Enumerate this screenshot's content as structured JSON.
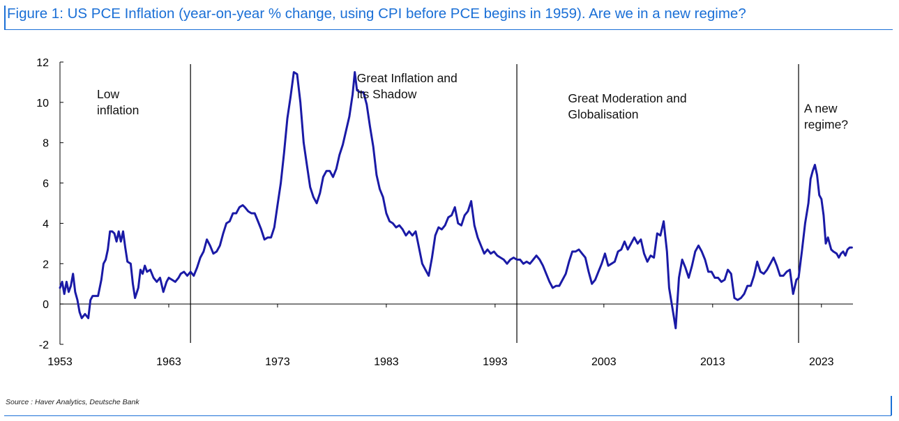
{
  "title": "Figure 1: US PCE Inflation (year-on-year % change, using CPI before PCE begins in 1959). Are we in a new regime?",
  "source": "Source : Haver Analytics, Deutsche Bank",
  "colors": {
    "accent": "#1a6fd6",
    "series": "#1a1aa6",
    "axis": "#000000"
  },
  "chart_data": {
    "type": "line",
    "title": "Figure 1: US PCE Inflation (year-on-year % change, using CPI before PCE begins in 1959). Are we in a new regime?",
    "xlabel": "",
    "ylabel": "",
    "xlim": [
      1953,
      2025.9
    ],
    "ylim": [
      -2,
      12
    ],
    "x_ticks": [
      1953,
      1963,
      1973,
      1983,
      1993,
      2003,
      2013,
      2023
    ],
    "x_tick_labels": [
      "1953",
      "1963",
      "1973",
      "1983",
      "1993",
      "2003",
      "2013",
      "2023"
    ],
    "y_ticks": [
      -2,
      0,
      2,
      4,
      6,
      8,
      10,
      12
    ],
    "y_tick_labels": [
      "-2",
      "0",
      "2",
      "4",
      "6",
      "8",
      "10",
      "12"
    ],
    "grid": false,
    "legend": "none",
    "regime_dividers": [
      1965,
      1995,
      2020.9
    ],
    "annotations": [
      {
        "lines": [
          "Low",
          "inflation"
        ],
        "x": 1956.4,
        "y": 10.2
      },
      {
        "lines": [
          "Great Inflation and",
          "its Shadow"
        ],
        "x": 1980.3,
        "y": 11.0
      },
      {
        "lines": [
          "Great Moderation and",
          "Globalisation"
        ],
        "x": 1999.7,
        "y": 10.0
      },
      {
        "lines": [
          "A new",
          "regime?"
        ],
        "x": 2021.4,
        "y": 9.5
      }
    ],
    "series": [
      {
        "points": [
          [
            1953.0,
            0.8
          ],
          [
            1953.2,
            1.1
          ],
          [
            1953.4,
            0.5
          ],
          [
            1953.6,
            1.1
          ],
          [
            1953.8,
            0.6
          ],
          [
            1954.0,
            0.9
          ],
          [
            1954.2,
            1.5
          ],
          [
            1954.4,
            0.6
          ],
          [
            1954.6,
            0.2
          ],
          [
            1954.8,
            -0.4
          ],
          [
            1955.0,
            -0.7
          ],
          [
            1955.3,
            -0.5
          ],
          [
            1955.6,
            -0.7
          ],
          [
            1955.8,
            0.2
          ],
          [
            1956.0,
            0.4
          ],
          [
            1956.5,
            0.4
          ],
          [
            1956.8,
            1.2
          ],
          [
            1957.0,
            2.0
          ],
          [
            1957.2,
            2.2
          ],
          [
            1957.4,
            2.7
          ],
          [
            1957.6,
            3.6
          ],
          [
            1957.8,
            3.6
          ],
          [
            1958.0,
            3.5
          ],
          [
            1958.2,
            3.1
          ],
          [
            1958.4,
            3.6
          ],
          [
            1958.6,
            3.1
          ],
          [
            1958.8,
            3.6
          ],
          [
            1959.0,
            2.8
          ],
          [
            1959.2,
            2.1
          ],
          [
            1959.5,
            2.0
          ],
          [
            1959.7,
            1.0
          ],
          [
            1959.9,
            0.3
          ],
          [
            1960.2,
            0.8
          ],
          [
            1960.4,
            1.7
          ],
          [
            1960.6,
            1.5
          ],
          [
            1960.8,
            1.9
          ],
          [
            1961.0,
            1.6
          ],
          [
            1961.3,
            1.7
          ],
          [
            1961.6,
            1.3
          ],
          [
            1961.9,
            1.1
          ],
          [
            1962.2,
            1.3
          ],
          [
            1962.5,
            0.6
          ],
          [
            1962.8,
            1.1
          ],
          [
            1963.0,
            1.3
          ],
          [
            1963.3,
            1.2
          ],
          [
            1963.6,
            1.1
          ],
          [
            1963.9,
            1.3
          ],
          [
            1964.1,
            1.5
          ],
          [
            1964.4,
            1.6
          ],
          [
            1964.7,
            1.4
          ],
          [
            1965.0,
            1.6
          ],
          [
            1965.3,
            1.4
          ],
          [
            1965.6,
            1.8
          ],
          [
            1965.9,
            2.3
          ],
          [
            1966.2,
            2.6
          ],
          [
            1966.5,
            3.2
          ],
          [
            1966.8,
            2.9
          ],
          [
            1967.1,
            2.5
          ],
          [
            1967.4,
            2.6
          ],
          [
            1967.7,
            2.9
          ],
          [
            1968.0,
            3.5
          ],
          [
            1968.3,
            4.0
          ],
          [
            1968.6,
            4.1
          ],
          [
            1968.9,
            4.5
          ],
          [
            1969.2,
            4.5
          ],
          [
            1969.5,
            4.8
          ],
          [
            1969.8,
            4.9
          ],
          [
            1970.0,
            4.8
          ],
          [
            1970.3,
            4.6
          ],
          [
            1970.6,
            4.5
          ],
          [
            1970.9,
            4.5
          ],
          [
            1971.2,
            4.1
          ],
          [
            1971.5,
            3.7
          ],
          [
            1971.8,
            3.2
          ],
          [
            1972.1,
            3.3
          ],
          [
            1972.4,
            3.3
          ],
          [
            1972.7,
            3.8
          ],
          [
            1973.0,
            4.9
          ],
          [
            1973.3,
            6.0
          ],
          [
            1973.6,
            7.5
          ],
          [
            1973.9,
            9.2
          ],
          [
            1974.2,
            10.3
          ],
          [
            1974.5,
            11.5
          ],
          [
            1974.8,
            11.4
          ],
          [
            1975.1,
            10.0
          ],
          [
            1975.4,
            8.0
          ],
          [
            1975.7,
            6.9
          ],
          [
            1976.0,
            5.8
          ],
          [
            1976.3,
            5.3
          ],
          [
            1976.6,
            5.0
          ],
          [
            1976.9,
            5.5
          ],
          [
            1977.2,
            6.3
          ],
          [
            1977.5,
            6.6
          ],
          [
            1977.8,
            6.6
          ],
          [
            1978.1,
            6.3
          ],
          [
            1978.4,
            6.7
          ],
          [
            1978.7,
            7.4
          ],
          [
            1979.0,
            7.9
          ],
          [
            1979.3,
            8.6
          ],
          [
            1979.6,
            9.3
          ],
          [
            1979.9,
            10.4
          ],
          [
            1980.1,
            11.5
          ],
          [
            1980.3,
            10.6
          ],
          [
            1980.6,
            10.5
          ],
          [
            1980.9,
            10.5
          ],
          [
            1981.2,
            9.9
          ],
          [
            1981.5,
            8.8
          ],
          [
            1981.8,
            7.8
          ],
          [
            1982.1,
            6.4
          ],
          [
            1982.4,
            5.7
          ],
          [
            1982.7,
            5.3
          ],
          [
            1983.0,
            4.5
          ],
          [
            1983.3,
            4.1
          ],
          [
            1983.6,
            4.0
          ],
          [
            1983.9,
            3.8
          ],
          [
            1984.2,
            3.9
          ],
          [
            1984.5,
            3.7
          ],
          [
            1984.8,
            3.4
          ],
          [
            1985.1,
            3.6
          ],
          [
            1985.4,
            3.4
          ],
          [
            1985.7,
            3.6
          ],
          [
            1986.0,
            2.8
          ],
          [
            1986.3,
            2.0
          ],
          [
            1986.6,
            1.7
          ],
          [
            1986.9,
            1.4
          ],
          [
            1987.2,
            2.3
          ],
          [
            1987.5,
            3.4
          ],
          [
            1987.8,
            3.8
          ],
          [
            1988.1,
            3.7
          ],
          [
            1988.4,
            3.9
          ],
          [
            1988.7,
            4.3
          ],
          [
            1989.0,
            4.4
          ],
          [
            1989.3,
            4.8
          ],
          [
            1989.6,
            4.0
          ],
          [
            1989.9,
            3.9
          ],
          [
            1990.2,
            4.4
          ],
          [
            1990.5,
            4.6
          ],
          [
            1990.8,
            5.1
          ],
          [
            1991.1,
            3.9
          ],
          [
            1991.4,
            3.3
          ],
          [
            1991.7,
            2.9
          ],
          [
            1992.0,
            2.5
          ],
          [
            1992.3,
            2.7
          ],
          [
            1992.6,
            2.5
          ],
          [
            1992.9,
            2.6
          ],
          [
            1993.2,
            2.4
          ],
          [
            1993.5,
            2.3
          ],
          [
            1993.8,
            2.2
          ],
          [
            1994.1,
            2.0
          ],
          [
            1994.4,
            2.2
          ],
          [
            1994.7,
            2.3
          ],
          [
            1995.0,
            2.2
          ],
          [
            1995.3,
            2.2
          ],
          [
            1995.6,
            2.0
          ],
          [
            1995.9,
            2.1
          ],
          [
            1996.2,
            2.0
          ],
          [
            1996.5,
            2.2
          ],
          [
            1996.8,
            2.4
          ],
          [
            1997.1,
            2.2
          ],
          [
            1997.4,
            1.9
          ],
          [
            1997.7,
            1.5
          ],
          [
            1998.0,
            1.1
          ],
          [
            1998.3,
            0.8
          ],
          [
            1998.6,
            0.9
          ],
          [
            1998.9,
            0.9
          ],
          [
            1999.2,
            1.2
          ],
          [
            1999.5,
            1.5
          ],
          [
            1999.8,
            2.1
          ],
          [
            2000.1,
            2.6
          ],
          [
            2000.4,
            2.6
          ],
          [
            2000.7,
            2.7
          ],
          [
            2001.0,
            2.5
          ],
          [
            2001.3,
            2.3
          ],
          [
            2001.6,
            1.6
          ],
          [
            2001.9,
            1.0
          ],
          [
            2002.2,
            1.2
          ],
          [
            2002.5,
            1.6
          ],
          [
            2002.8,
            2.0
          ],
          [
            2003.1,
            2.5
          ],
          [
            2003.4,
            1.9
          ],
          [
            2003.7,
            2.0
          ],
          [
            2004.0,
            2.1
          ],
          [
            2004.3,
            2.6
          ],
          [
            2004.6,
            2.7
          ],
          [
            2004.9,
            3.1
          ],
          [
            2005.2,
            2.7
          ],
          [
            2005.5,
            3.0
          ],
          [
            2005.8,
            3.3
          ],
          [
            2006.1,
            3.0
          ],
          [
            2006.4,
            3.2
          ],
          [
            2006.7,
            2.5
          ],
          [
            2007.0,
            2.1
          ],
          [
            2007.3,
            2.4
          ],
          [
            2007.6,
            2.3
          ],
          [
            2007.9,
            3.5
          ],
          [
            2008.2,
            3.4
          ],
          [
            2008.5,
            4.1
          ],
          [
            2008.8,
            2.6
          ],
          [
            2009.0,
            0.8
          ],
          [
            2009.3,
            -0.2
          ],
          [
            2009.6,
            -1.2
          ],
          [
            2009.9,
            1.3
          ],
          [
            2010.2,
            2.2
          ],
          [
            2010.5,
            1.8
          ],
          [
            2010.8,
            1.3
          ],
          [
            2011.1,
            1.9
          ],
          [
            2011.4,
            2.6
          ],
          [
            2011.7,
            2.9
          ],
          [
            2012.0,
            2.6
          ],
          [
            2012.3,
            2.2
          ],
          [
            2012.6,
            1.6
          ],
          [
            2012.9,
            1.6
          ],
          [
            2013.2,
            1.3
          ],
          [
            2013.5,
            1.3
          ],
          [
            2013.8,
            1.1
          ],
          [
            2014.1,
            1.2
          ],
          [
            2014.4,
            1.7
          ],
          [
            2014.7,
            1.5
          ],
          [
            2015.0,
            0.3
          ],
          [
            2015.3,
            0.2
          ],
          [
            2015.6,
            0.3
          ],
          [
            2015.9,
            0.5
          ],
          [
            2016.2,
            0.9
          ],
          [
            2016.5,
            0.9
          ],
          [
            2016.8,
            1.4
          ],
          [
            2017.1,
            2.1
          ],
          [
            2017.4,
            1.6
          ],
          [
            2017.7,
            1.5
          ],
          [
            2018.0,
            1.7
          ],
          [
            2018.3,
            2.0
          ],
          [
            2018.6,
            2.3
          ],
          [
            2018.9,
            1.9
          ],
          [
            2019.2,
            1.4
          ],
          [
            2019.5,
            1.4
          ],
          [
            2019.8,
            1.6
          ],
          [
            2020.1,
            1.7
          ],
          [
            2020.4,
            0.5
          ],
          [
            2020.7,
            1.2
          ],
          [
            2020.9,
            1.3
          ],
          [
            2021.2,
            2.6
          ],
          [
            2021.5,
            4.0
          ],
          [
            2021.8,
            5.0
          ],
          [
            2022.0,
            6.2
          ],
          [
            2022.2,
            6.6
          ],
          [
            2022.4,
            6.9
          ],
          [
            2022.6,
            6.4
          ],
          [
            2022.8,
            5.4
          ],
          [
            2023.0,
            5.2
          ],
          [
            2023.2,
            4.4
          ],
          [
            2023.4,
            3.0
          ],
          [
            2023.6,
            3.3
          ],
          [
            2023.9,
            2.7
          ],
          [
            2024.1,
            2.6
          ],
          [
            2024.4,
            2.5
          ],
          [
            2024.6,
            2.3
          ],
          [
            2024.8,
            2.5
          ],
          [
            2025.0,
            2.6
          ],
          [
            2025.2,
            2.4
          ],
          [
            2025.4,
            2.7
          ],
          [
            2025.6,
            2.8
          ],
          [
            2025.8,
            2.8
          ]
        ]
      }
    ]
  }
}
